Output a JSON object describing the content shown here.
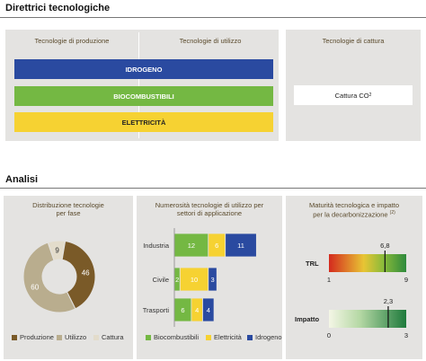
{
  "directions": {
    "title": "Direttrici tecnologiche",
    "col1": "Tecnologie di produzione",
    "col2": "Tecnologie di utilizzo",
    "col3": "Tecnologie di cattura",
    "bars": [
      {
        "label": "IDROGENO",
        "color": "#2a4aa0"
      },
      {
        "label": "BIOCOMBUSTIBILI",
        "color": "#74b843"
      },
      {
        "label": "ELETTRICITÀ",
        "color": "#f6d232"
      }
    ],
    "capture_label": "Cattura CO",
    "capture_sub": "2"
  },
  "analysis": {
    "title": "Analisi",
    "p1_title_l1": "Distribuzione tecnologie",
    "p1_title_l2": "per fase",
    "p2_title_l1": "Numerosità tecnologie di utilizzo per",
    "p2_title_l2": "settori di applicazione",
    "p3_title_l1": "Maturità tecnologica e impatto",
    "p3_title_l2": "per la decarbonizzazione",
    "p3_note": "(2)"
  },
  "chart_data": [
    {
      "type": "pie",
      "title": "Distribuzione tecnologie per fase",
      "labels": [
        "Produzione",
        "Utilizzo",
        "Cattura"
      ],
      "values": [
        46,
        60,
        9
      ],
      "colors": [
        "#7a5a28",
        "#b9ad8e",
        "#e3dccb"
      ]
    },
    {
      "type": "bar",
      "orientation": "horizontal",
      "stacked": true,
      "title": "Numerosità tecnologie di utilizzo per settori di applicazione",
      "categories": [
        "Industria",
        "Civile",
        "Trasporti"
      ],
      "series": [
        {
          "name": "Biocombustibili",
          "values": [
            12,
            2,
            6
          ],
          "color": "#74b843"
        },
        {
          "name": "Elettricità",
          "values": [
            6,
            10,
            4
          ],
          "color": "#f6d232"
        },
        {
          "name": "Idrogeno",
          "values": [
            11,
            3,
            4
          ],
          "color": "#2a4aa0"
        }
      ]
    },
    {
      "type": "gauge",
      "label": "TRL",
      "value": 6.8,
      "value_label": "6,8",
      "min": 1,
      "max": 9,
      "min_label": "1",
      "max_label": "9"
    },
    {
      "type": "gauge",
      "label": "Impatto",
      "value": 2.3,
      "value_label": "2,3",
      "min": 0,
      "max": 3,
      "min_label": "0",
      "max_label": "3"
    }
  ]
}
